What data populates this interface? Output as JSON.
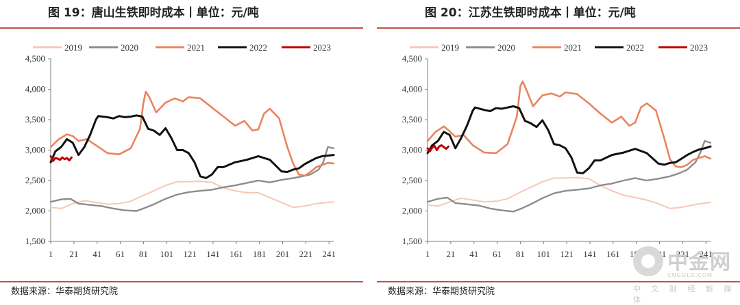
{
  "source_text": "数据来源：华泰期货研究院",
  "watermark": {
    "name": "中金网",
    "domain": "CNGOLD.COM",
    "sub": "中 文 财 经 新 媒 体"
  },
  "chart_data": [
    {
      "type": "line",
      "title": "图 19：唐山生铁即时成本丨单位：元/吨",
      "xticks": [
        "1",
        "21",
        "41",
        "61",
        "81",
        "101",
        "121",
        "141",
        "161",
        "181",
        "201",
        "221",
        "241"
      ],
      "yticks": [
        "4,500",
        "4,000",
        "3,500",
        "3,000",
        "2,500",
        "2,000",
        "1,500"
      ],
      "xlim": [
        1,
        245
      ],
      "ylim": [
        1500,
        4500
      ],
      "grid": false,
      "legend_position": "top",
      "series": [
        {
          "name": "2019",
          "color": "#f6c8b4",
          "width": 2,
          "x": [
            1,
            10,
            20,
            30,
            40,
            50,
            60,
            70,
            80,
            90,
            100,
            110,
            120,
            130,
            140,
            150,
            160,
            170,
            180,
            190,
            200,
            210,
            220,
            230,
            240,
            245
          ],
          "y": [
            2060,
            2040,
            2120,
            2170,
            2140,
            2110,
            2120,
            2160,
            2250,
            2330,
            2420,
            2480,
            2480,
            2490,
            2470,
            2380,
            2330,
            2300,
            2300,
            2220,
            2140,
            2060,
            2080,
            2120,
            2140,
            2150
          ]
        },
        {
          "name": "2020",
          "color": "#8c8c8c",
          "width": 2.4,
          "x": [
            1,
            10,
            18,
            25,
            35,
            45,
            55,
            65,
            75,
            82,
            90,
            100,
            110,
            120,
            130,
            140,
            150,
            160,
            170,
            180,
            190,
            200,
            210,
            218,
            225,
            232,
            236,
            240,
            245
          ],
          "y": [
            2150,
            2190,
            2200,
            2120,
            2100,
            2080,
            2040,
            2010,
            2000,
            2050,
            2110,
            2200,
            2270,
            2310,
            2330,
            2350,
            2390,
            2420,
            2460,
            2500,
            2470,
            2510,
            2540,
            2570,
            2600,
            2680,
            2800,
            3050,
            3030
          ]
        },
        {
          "name": "2021",
          "color": "#e8845e",
          "width": 2.6,
          "x": [
            1,
            8,
            15,
            20,
            25,
            32,
            40,
            50,
            60,
            70,
            78,
            81,
            83,
            86,
            92,
            100,
            108,
            115,
            120,
            130,
            140,
            150,
            160,
            168,
            175,
            180,
            185,
            190,
            198,
            205,
            210,
            215,
            220,
            225,
            230,
            240,
            245
          ],
          "y": [
            3050,
            3180,
            3260,
            3230,
            3150,
            3180,
            3080,
            2950,
            2930,
            3030,
            3350,
            3780,
            3960,
            3870,
            3620,
            3780,
            3850,
            3800,
            3870,
            3850,
            3700,
            3550,
            3400,
            3480,
            3320,
            3340,
            3600,
            3680,
            3520,
            3050,
            2780,
            2600,
            2580,
            2640,
            2720,
            2790,
            2780
          ]
        },
        {
          "name": "2022",
          "color": "#111111",
          "width": 3,
          "x": [
            1,
            5,
            10,
            15,
            20,
            25,
            30,
            35,
            40,
            42,
            50,
            55,
            60,
            65,
            70,
            75,
            80,
            85,
            90,
            95,
            100,
            105,
            110,
            115,
            120,
            125,
            130,
            135,
            140,
            145,
            150,
            160,
            170,
            180,
            190,
            200,
            205,
            210,
            215,
            220,
            225,
            230,
            235,
            240,
            245
          ],
          "y": [
            2800,
            2980,
            3050,
            3180,
            3120,
            2920,
            3050,
            3250,
            3500,
            3560,
            3540,
            3520,
            3560,
            3540,
            3550,
            3570,
            3550,
            3350,
            3320,
            3250,
            3360,
            3200,
            3000,
            3000,
            2950,
            2800,
            2570,
            2540,
            2600,
            2720,
            2720,
            2800,
            2840,
            2900,
            2840,
            2650,
            2640,
            2680,
            2700,
            2770,
            2820,
            2870,
            2900,
            2910,
            2920
          ]
        },
        {
          "name": "2023",
          "color": "#c00000",
          "width": 3,
          "x": [
            1,
            3,
            5,
            7,
            9,
            11,
            13,
            15,
            17,
            19
          ],
          "y": [
            2900,
            2820,
            2870,
            2860,
            2840,
            2880,
            2850,
            2870,
            2830,
            2880
          ]
        }
      ]
    },
    {
      "type": "line",
      "title": "图 20：江苏生铁即时成本丨单位：元/吨",
      "xticks": [
        "1",
        "21",
        "41",
        "61",
        "81",
        "101",
        "121",
        "141",
        "161",
        "181",
        "201",
        "221",
        "241"
      ],
      "yticks": [
        "4,500",
        "4,000",
        "3,500",
        "3,000",
        "2,500",
        "2,000",
        "1,500"
      ],
      "xlim": [
        1,
        245
      ],
      "ylim": [
        1500,
        4500
      ],
      "grid": false,
      "legend_position": "top",
      "series": [
        {
          "name": "2019",
          "color": "#f6c8b4",
          "width": 2,
          "x": [
            1,
            10,
            20,
            30,
            40,
            50,
            60,
            70,
            80,
            90,
            100,
            110,
            120,
            130,
            140,
            150,
            160,
            170,
            180,
            190,
            200,
            210,
            220,
            230,
            240,
            245
          ],
          "y": [
            2100,
            2080,
            2150,
            2210,
            2180,
            2150,
            2160,
            2200,
            2300,
            2390,
            2480,
            2540,
            2540,
            2550,
            2530,
            2420,
            2330,
            2260,
            2220,
            2180,
            2120,
            2040,
            2060,
            2100,
            2130,
            2140
          ]
        },
        {
          "name": "2020",
          "color": "#8c8c8c",
          "width": 2.4,
          "x": [
            1,
            10,
            18,
            25,
            35,
            45,
            55,
            65,
            75,
            82,
            90,
            100,
            110,
            120,
            130,
            140,
            150,
            160,
            170,
            180,
            190,
            200,
            210,
            218,
            225,
            232,
            236,
            240,
            245
          ],
          "y": [
            2150,
            2200,
            2220,
            2130,
            2110,
            2090,
            2040,
            2010,
            1990,
            2040,
            2110,
            2210,
            2290,
            2330,
            2350,
            2370,
            2420,
            2450,
            2500,
            2540,
            2500,
            2530,
            2570,
            2620,
            2680,
            2800,
            2950,
            3150,
            3120
          ]
        },
        {
          "name": "2021",
          "color": "#e8845e",
          "width": 2.6,
          "x": [
            1,
            8,
            15,
            20,
            25,
            32,
            40,
            50,
            60,
            70,
            78,
            81,
            83,
            86,
            92,
            100,
            108,
            115,
            120,
            130,
            140,
            150,
            160,
            168,
            175,
            180,
            185,
            190,
            198,
            205,
            210,
            215,
            220,
            225,
            230,
            240,
            245
          ],
          "y": [
            3150,
            3300,
            3390,
            3310,
            3220,
            3250,
            3080,
            2960,
            2950,
            3100,
            3550,
            4050,
            4130,
            4000,
            3720,
            3900,
            3930,
            3880,
            3950,
            3920,
            3770,
            3600,
            3450,
            3550,
            3400,
            3450,
            3700,
            3770,
            3650,
            3200,
            2850,
            2730,
            2720,
            2760,
            2840,
            2900,
            2860
          ]
        },
        {
          "name": "2022",
          "color": "#111111",
          "width": 3,
          "x": [
            1,
            5,
            10,
            15,
            20,
            25,
            30,
            35,
            40,
            42,
            50,
            55,
            60,
            65,
            70,
            75,
            80,
            85,
            90,
            95,
            100,
            105,
            110,
            115,
            120,
            125,
            130,
            135,
            140,
            145,
            150,
            160,
            170,
            180,
            190,
            200,
            205,
            210,
            215,
            220,
            225,
            230,
            235,
            240,
            245
          ],
          "y": [
            2950,
            3080,
            3150,
            3300,
            3250,
            3030,
            3200,
            3400,
            3650,
            3700,
            3660,
            3640,
            3690,
            3680,
            3700,
            3720,
            3690,
            3480,
            3440,
            3380,
            3490,
            3330,
            3100,
            3080,
            3030,
            2880,
            2630,
            2620,
            2700,
            2830,
            2830,
            2920,
            2960,
            3020,
            2950,
            2780,
            2760,
            2790,
            2800,
            2860,
            2920,
            2970,
            3010,
            3030,
            3060
          ]
        },
        {
          "name": "2023",
          "color": "#c00000",
          "width": 3,
          "x": [
            1,
            3,
            5,
            7,
            9,
            11,
            13,
            15,
            17,
            19
          ],
          "y": [
            3030,
            2980,
            3040,
            3070,
            3000,
            3060,
            3080,
            3050,
            3020,
            3060
          ]
        }
      ]
    }
  ]
}
